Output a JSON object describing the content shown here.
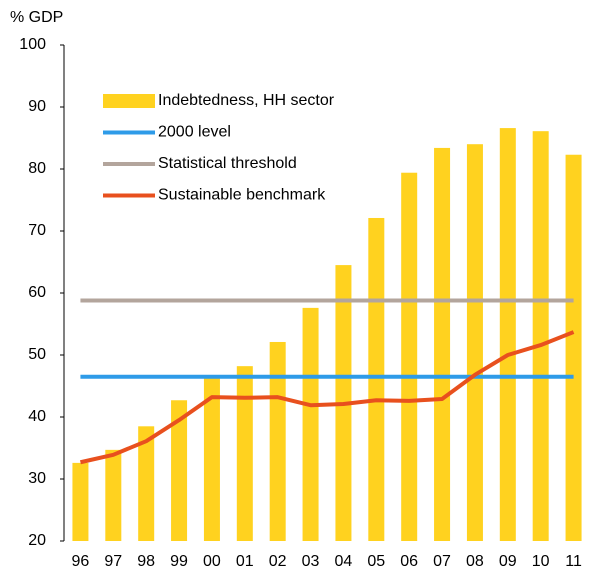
{
  "chart_data": {
    "type": "bar",
    "y_label": "% GDP",
    "categories": [
      "96",
      "97",
      "98",
      "99",
      "00",
      "01",
      "02",
      "03",
      "04",
      "05",
      "06",
      "07",
      "08",
      "09",
      "10",
      "11"
    ],
    "series": [
      {
        "name": "Indebtedness, HH sector",
        "type": "bar",
        "color": "#ffd21f",
        "values": [
          32.6,
          34.7,
          38.5,
          42.7,
          46.5,
          48.2,
          52.1,
          57.6,
          64.5,
          72.1,
          79.4,
          83.4,
          84.0,
          86.6,
          86.1,
          82.3
        ]
      },
      {
        "name": "2000 level",
        "type": "line",
        "color": "#2e9be8",
        "values": [
          46.5,
          46.5,
          46.5,
          46.5,
          46.5,
          46.5,
          46.5,
          46.5,
          46.5,
          46.5,
          46.5,
          46.5,
          46.5,
          46.5,
          46.5,
          46.5
        ]
      },
      {
        "name": "Statistical threshold",
        "type": "line",
        "color": "#b3a59c",
        "values": [
          58.8,
          58.8,
          58.8,
          58.8,
          58.8,
          58.8,
          58.8,
          58.8,
          58.8,
          58.8,
          58.8,
          58.8,
          58.8,
          58.8,
          58.8,
          58.8
        ]
      },
      {
        "name": "Sustainable benchmark",
        "type": "line",
        "color": "#e8501e",
        "values": [
          32.7,
          33.9,
          36.1,
          39.5,
          43.2,
          43.1,
          43.2,
          41.9,
          42.1,
          42.7,
          42.6,
          42.9,
          46.8,
          50.0,
          51.6,
          53.7
        ]
      }
    ],
    "ylim": [
      20,
      100
    ],
    "yticks": [
      20,
      30,
      40,
      50,
      60,
      70,
      80,
      90,
      100
    ],
    "grid": false,
    "legend": "top-left"
  }
}
